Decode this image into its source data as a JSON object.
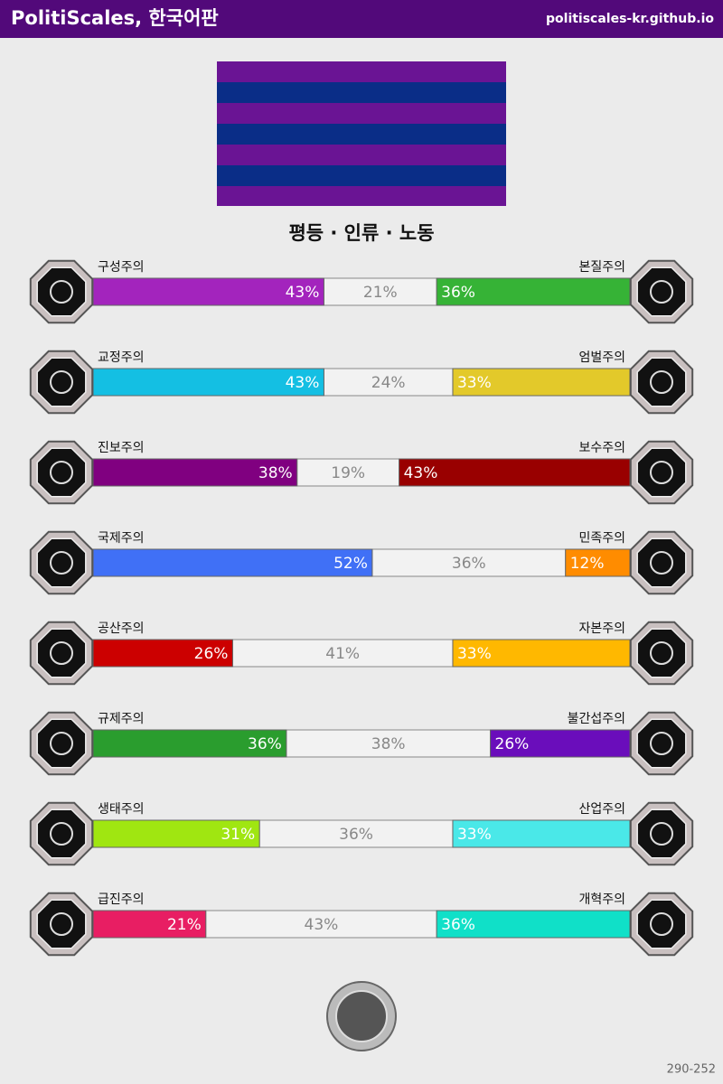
{
  "header": {
    "title": "PolitiScales, 한국어판",
    "url": "politiscales-kr.github.io"
  },
  "result_title": "평등 · 인류 · 노동",
  "axes": [
    {
      "left": {
        "name": "구성주의",
        "value": 43,
        "value_label": "43%",
        "color": "#a324bd"
      },
      "neutral": {
        "value": 21,
        "value_label": "21%"
      },
      "right": {
        "name": "본질주의",
        "value": 36,
        "value_label": "36%",
        "color": "#36b336"
      }
    },
    {
      "left": {
        "name": "교정주의",
        "value": 43,
        "value_label": "43%",
        "color": "#14bfe3"
      },
      "neutral": {
        "value": 24,
        "value_label": "24%"
      },
      "right": {
        "name": "엄벌주의",
        "value": 33,
        "value_label": "33%",
        "color": "#e3c92a"
      }
    },
    {
      "left": {
        "name": "진보주의",
        "value": 38,
        "value_label": "38%",
        "color": "#800080"
      },
      "neutral": {
        "value": 19,
        "value_label": "19%"
      },
      "right": {
        "name": "보수주의",
        "value": 43,
        "value_label": "43%",
        "color": "#990000"
      }
    },
    {
      "left": {
        "name": "국제주의",
        "value": 52,
        "value_label": "52%",
        "color": "#4070f6"
      },
      "neutral": {
        "value": 36,
        "value_label": "36%"
      },
      "right": {
        "name": "민족주의",
        "value": 12,
        "value_label": "12%",
        "color": "#ff8c00"
      }
    },
    {
      "left": {
        "name": "공산주의",
        "value": 26,
        "value_label": "26%",
        "color": "#cc0000"
      },
      "neutral": {
        "value": 41,
        "value_label": "41%"
      },
      "right": {
        "name": "자본주의",
        "value": 33,
        "value_label": "33%",
        "color": "#ffb800"
      }
    },
    {
      "left": {
        "name": "규제주의",
        "value": 36,
        "value_label": "36%",
        "color": "#2a9d2e"
      },
      "neutral": {
        "value": 38,
        "value_label": "38%"
      },
      "right": {
        "name": "불간섭주의",
        "value": 26,
        "value_label": "26%",
        "color": "#6a0dbb"
      }
    },
    {
      "left": {
        "name": "생태주의",
        "value": 31,
        "value_label": "31%",
        "color": "#a0e611"
      },
      "neutral": {
        "value": 36,
        "value_label": "36%"
      },
      "right": {
        "name": "산업주의",
        "value": 33,
        "value_label": "33%",
        "color": "#4ae8e8"
      }
    },
    {
      "left": {
        "name": "급진주의",
        "value": 21,
        "value_label": "21%",
        "color": "#e81e63"
      },
      "neutral": {
        "value": 43,
        "value_label": "43%"
      },
      "right": {
        "name": "개혁주의",
        "value": 36,
        "value_label": "36%",
        "color": "#10e0c8"
      }
    }
  ],
  "footer": "290-252"
}
